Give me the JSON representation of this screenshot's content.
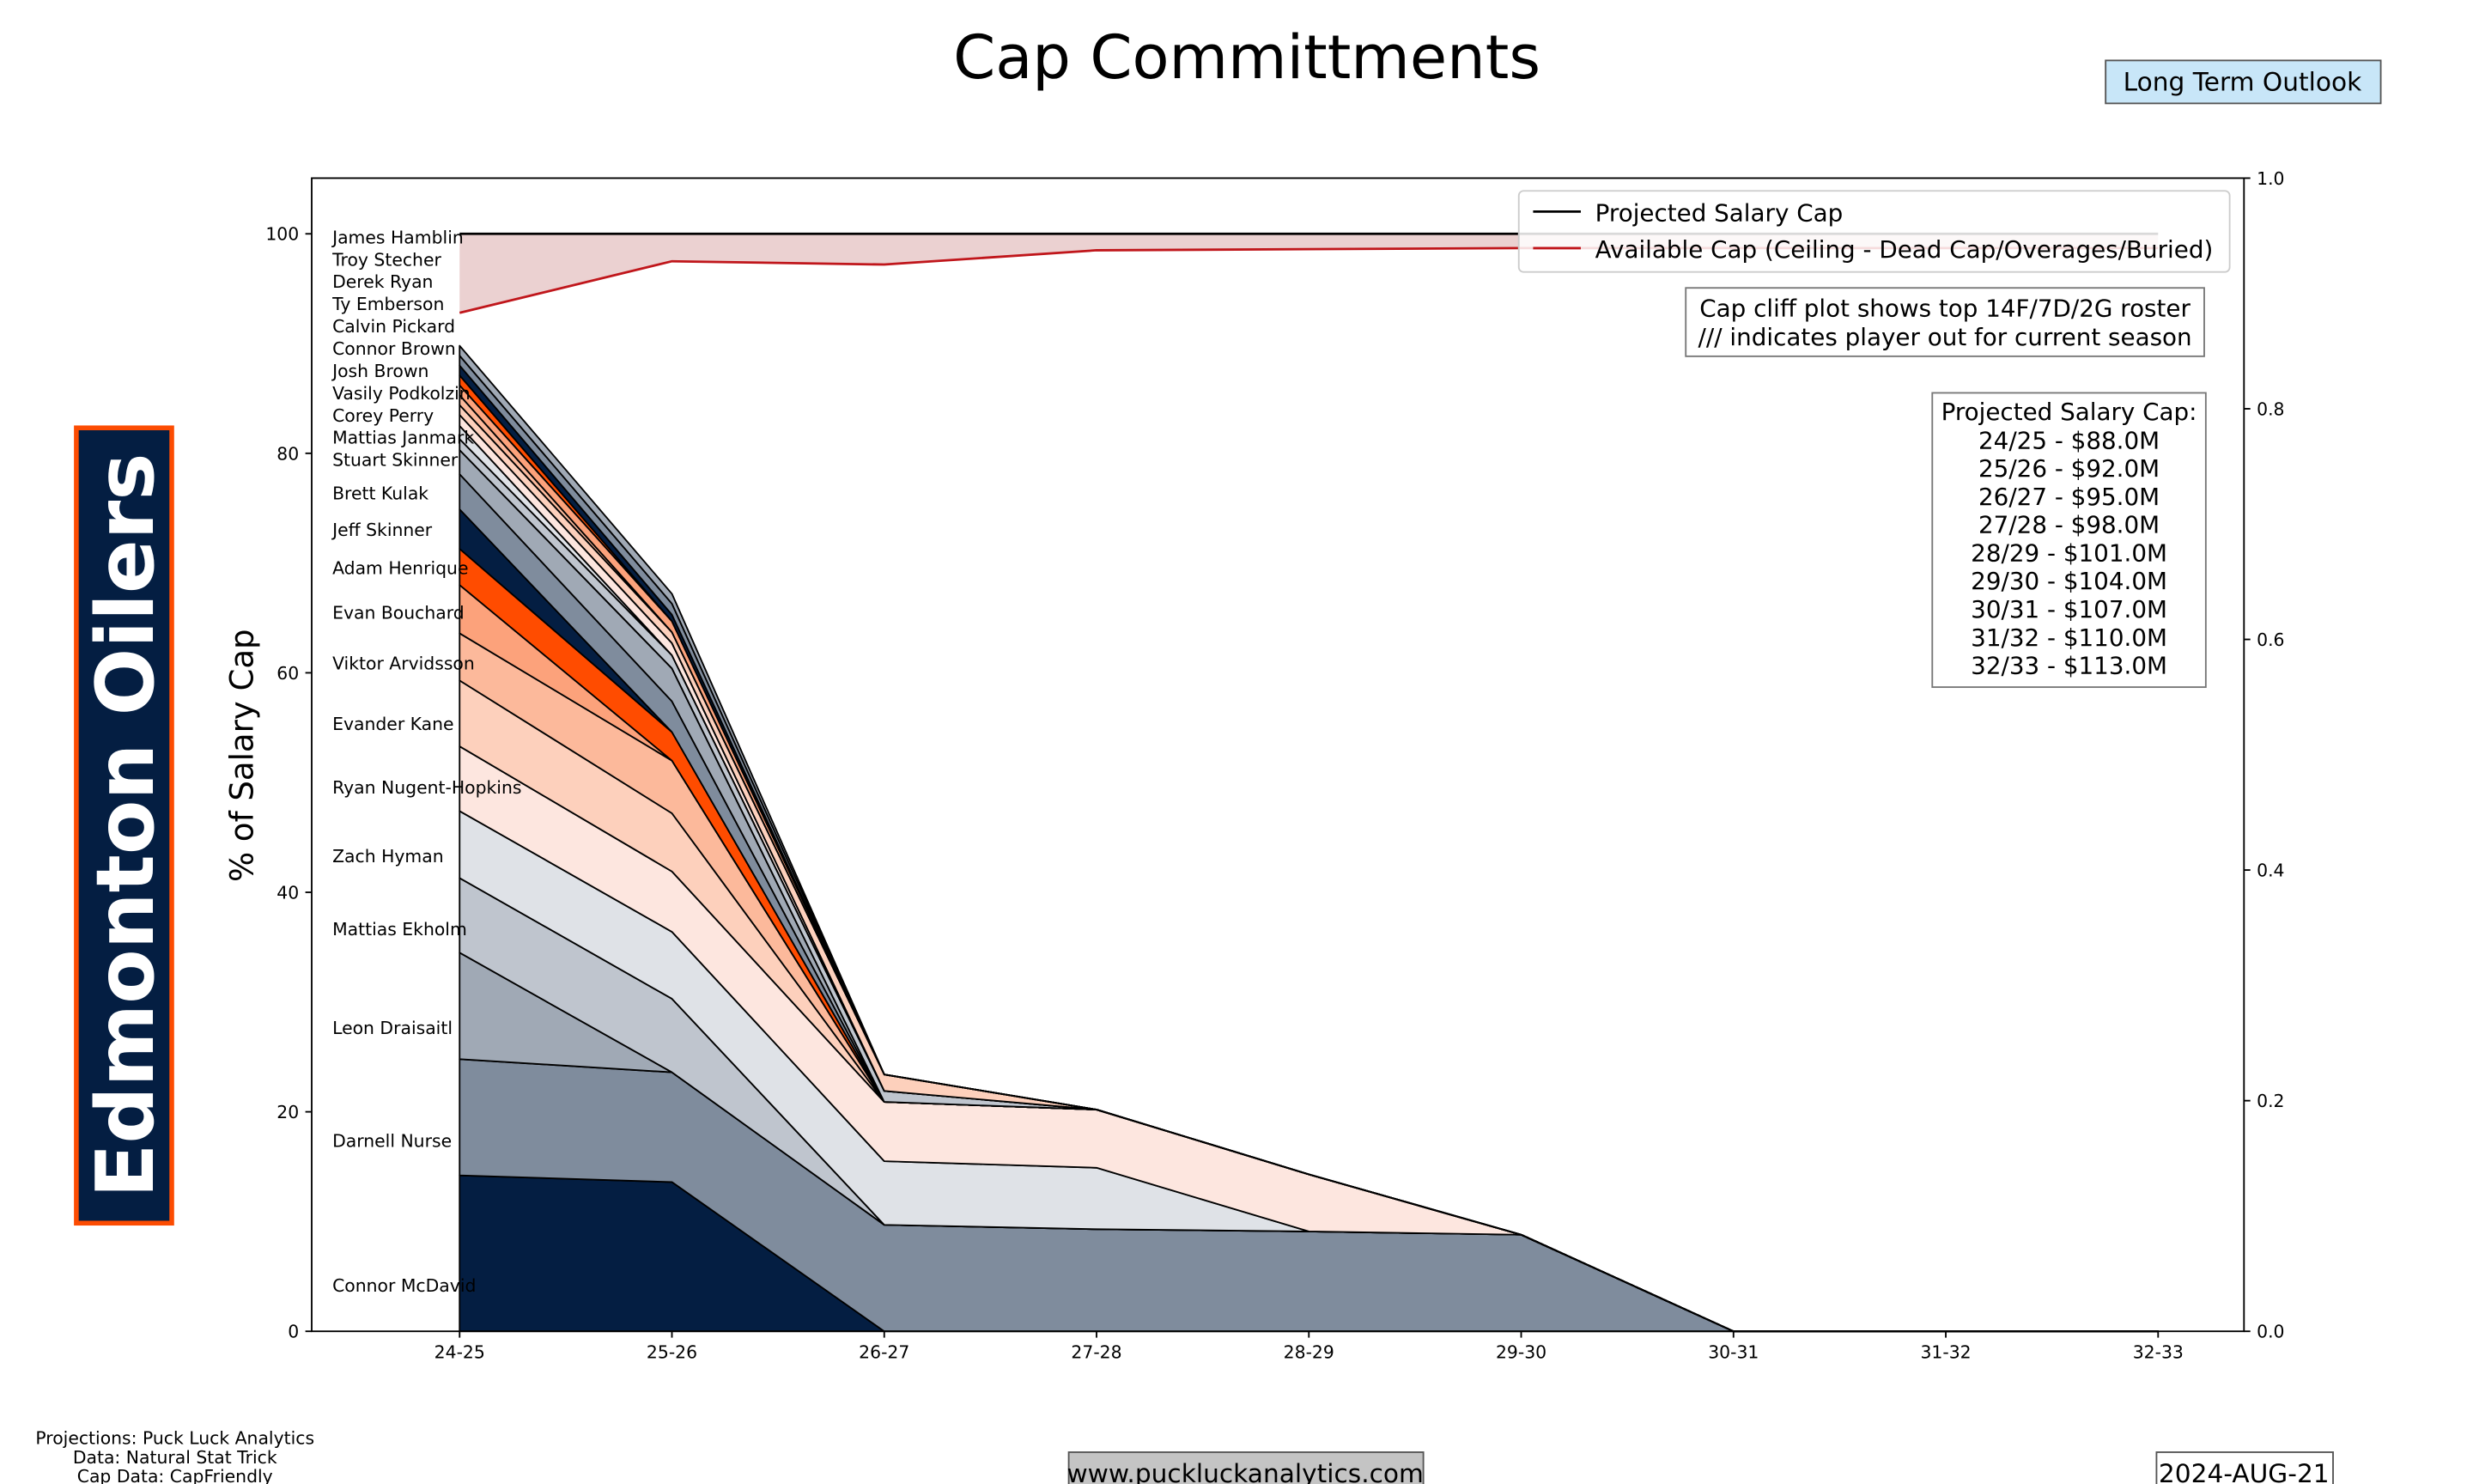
{
  "title": "Cap Committments",
  "outlook_badge": "Long Term Outlook",
  "team_name": "Edmonton Oilers",
  "footer": {
    "credits": [
      "Projections: Puck Luck Analytics",
      "Data: Natural Stat Trick",
      "Cap Data: CapFriendly"
    ],
    "website": "www.puckluckanalytics.com",
    "date": "2024-AUG-21"
  },
  "info_box": [
    "Cap cliff plot shows top 14F/7D/2G roster",
    "/// indicates player out for current season"
  ],
  "cap_box": {
    "title": "Projected Salary Cap:",
    "lines": [
      "24/25 - $88.0M",
      "25/26 - $92.0M",
      "26/27 - $95.0M",
      "27/28 - $98.0M",
      "28/29 - $101.0M",
      "29/30 - $104.0M",
      "30/31 - $107.0M",
      "31/32 - $110.0M",
      "32/33 - $113.0M"
    ]
  },
  "colors": {
    "navy": "#041e42",
    "orange": "#ff4c00",
    "available_line": "#c0161b",
    "available_fill": "#ebd1d1",
    "badge_bg": "#c8e6f8",
    "url_bg": "#c4c4c4"
  },
  "chart_data": {
    "type": "area",
    "stacked": true,
    "title": "Cap Committments",
    "xlabel": "",
    "ylabel": "% of Salary Cap",
    "ylim": [
      0,
      105
    ],
    "y_ticks": [
      "0",
      "20",
      "40",
      "60",
      "80",
      "100"
    ],
    "y2lim": [
      0,
      1
    ],
    "y2_ticks": [
      "0.0",
      "0.2",
      "0.4",
      "0.6",
      "0.8",
      "1.0"
    ],
    "categories": [
      "24-25",
      "25-26",
      "26-27",
      "27-28",
      "28-29",
      "29-30",
      "30-31",
      "31-32",
      "32-33"
    ],
    "legend_position": "top-right",
    "legend": [
      "Projected Salary Cap",
      "Available Cap (Ceiling - Dead Cap/Overages/Buried)"
    ],
    "projected_salary_cap": [
      100,
      100,
      100,
      100,
      100,
      100,
      100,
      100,
      100
    ],
    "available_cap": [
      92.8,
      97.5,
      97.2,
      98.5,
      98.6,
      98.7,
      98.7,
      98.7,
      98.7
    ],
    "series": [
      {
        "name": "Connor McDavid",
        "color": "#041e42",
        "values": [
          14.2,
          13.6,
          0,
          0,
          0,
          0,
          0,
          0,
          0
        ]
      },
      {
        "name": "Darnell Nurse",
        "color": "#7f8c9d",
        "values": [
          10.6,
          10.0,
          9.7,
          9.3,
          9.1,
          8.8,
          0,
          0,
          0
        ]
      },
      {
        "name": "Leon Draisaitl",
        "color": "#a0a9b5",
        "values": [
          9.7,
          0,
          0,
          0,
          0,
          0,
          0,
          0,
          0
        ]
      },
      {
        "name": "Mattias Ekholm",
        "color": "#bfc5ce",
        "values": [
          6.8,
          6.7,
          0,
          0,
          0,
          0,
          0,
          0,
          0
        ]
      },
      {
        "name": "Zach Hyman",
        "color": "#dfe2e7",
        "values": [
          6.1,
          6.1,
          5.8,
          5.6,
          0,
          0,
          0,
          0,
          0
        ]
      },
      {
        "name": "Ryan Nugent-Hopkins",
        "color": "#fde6df",
        "values": [
          5.9,
          5.5,
          5.4,
          5.3,
          5.2,
          0,
          0,
          0,
          0
        ]
      },
      {
        "name": "Evander Kane",
        "color": "#fdd0bc",
        "values": [
          6.0,
          5.3,
          0,
          0,
          0,
          0,
          0,
          0,
          0
        ]
      },
      {
        "name": "Viktor Arvidsson",
        "color": "#fcb99b",
        "values": [
          4.3,
          4.8,
          0,
          0,
          0,
          0,
          0,
          0,
          0
        ]
      },
      {
        "name": "Evan Bouchard",
        "color": "#fca27b",
        "values": [
          4.4,
          0,
          0,
          0,
          0,
          0,
          0,
          0,
          0
        ]
      },
      {
        "name": "Adam Henrique",
        "color": "#ff4c00",
        "values": [
          3.3,
          2.6,
          0,
          0,
          0,
          0,
          0,
          0,
          0
        ]
      },
      {
        "name": "Jeff Skinner",
        "color": "#041e42",
        "values": [
          3.6,
          0,
          0,
          0,
          0,
          0,
          0,
          0,
          0
        ]
      },
      {
        "name": "Brett Kulak",
        "color": "#7f8c9d",
        "values": [
          3.2,
          2.8,
          0,
          0,
          0,
          0,
          0,
          0,
          0
        ]
      },
      {
        "name": "Stuart Skinner",
        "color": "#a0a9b5",
        "values": [
          2.2,
          3.0,
          0,
          0,
          0,
          0,
          0,
          0,
          0
        ]
      },
      {
        "name": "Mattias Janmark",
        "color": "#bfc5ce",
        "values": [
          1.0,
          1.2,
          1.0,
          0,
          0,
          0,
          0,
          0,
          0
        ]
      },
      {
        "name": "Corey Perry",
        "color": "#dfe2e7",
        "values": [
          1.2,
          0,
          0,
          0,
          0,
          0,
          0,
          0,
          0
        ]
      },
      {
        "name": "Vasily Podkolzin",
        "color": "#fde6df",
        "values": [
          1.0,
          1.1,
          0,
          0,
          0,
          0,
          0,
          0,
          0
        ]
      },
      {
        "name": "Josh Brown",
        "color": "#fdd0bc",
        "values": [
          0.9,
          1.0,
          1.5,
          0,
          0,
          0,
          0,
          0,
          0
        ]
      },
      {
        "name": "Connor Brown",
        "color": "#fcb99b",
        "values": [
          0.9,
          0,
          0,
          0,
          0,
          0,
          0,
          0,
          0
        ]
      },
      {
        "name": "Calvin Pickard",
        "color": "#fca27b",
        "values": [
          0.9,
          1.0,
          0,
          0,
          0,
          0,
          0,
          0,
          0
        ]
      },
      {
        "name": "Ty Emberson",
        "color": "#ff4c00",
        "values": [
          0.9,
          0,
          0,
          0,
          0,
          0,
          0,
          0,
          0
        ]
      },
      {
        "name": "Derek Ryan",
        "color": "#041e42",
        "values": [
          0.9,
          0.6,
          0,
          0,
          0,
          0,
          0,
          0,
          0
        ]
      },
      {
        "name": "Troy Stecher",
        "color": "#7f8c9d",
        "values": [
          0.9,
          1.0,
          0,
          0,
          0,
          0,
          0,
          0,
          0
        ]
      },
      {
        "name": "James Hamblin",
        "color": "#a0a9b5",
        "values": [
          0.9,
          0.9,
          0,
          0,
          0,
          0,
          0,
          0,
          0
        ]
      }
    ]
  }
}
